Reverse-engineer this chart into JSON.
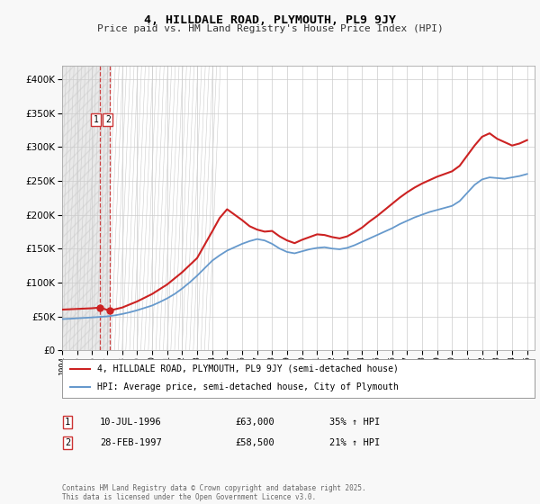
{
  "title": "4, HILLDALE ROAD, PLYMOUTH, PL9 9JY",
  "subtitle": "Price paid vs. HM Land Registry's House Price Index (HPI)",
  "legend_line1": "4, HILLDALE ROAD, PLYMOUTH, PL9 9JY (semi-detached house)",
  "legend_line2": "HPI: Average price, semi-detached house, City of Plymouth",
  "annotation1_num": "1",
  "annotation1_date": "10-JUL-1996",
  "annotation1_price": "£63,000",
  "annotation1_hpi": "35% ↑ HPI",
  "annotation2_num": "2",
  "annotation2_date": "28-FEB-1997",
  "annotation2_price": "£58,500",
  "annotation2_hpi": "21% ↑ HPI",
  "footer": "Contains HM Land Registry data © Crown copyright and database right 2025.\nThis data is licensed under the Open Government Licence v3.0.",
  "sale1_year": 1996.53,
  "sale1_price": 63000,
  "sale2_year": 1997.16,
  "sale2_price": 58500,
  "hpi_color": "#6699cc",
  "price_color": "#cc2222",
  "dashed_line_color": "#cc3333",
  "background_color": "#f8f8f8",
  "plot_bg_color": "#ffffff",
  "ylim": [
    0,
    420000
  ],
  "xlim_start": 1994.0,
  "xlim_end": 2025.5,
  "hpi_x": [
    1994.0,
    1994.5,
    1995.0,
    1995.5,
    1996.0,
    1996.5,
    1997.0,
    1997.5,
    1998.0,
    1998.5,
    1999.0,
    1999.5,
    2000.0,
    2000.5,
    2001.0,
    2001.5,
    2002.0,
    2002.5,
    2003.0,
    2003.5,
    2004.0,
    2004.5,
    2005.0,
    2005.5,
    2006.0,
    2006.5,
    2007.0,
    2007.5,
    2008.0,
    2008.5,
    2009.0,
    2009.5,
    2010.0,
    2010.5,
    2011.0,
    2011.5,
    2012.0,
    2012.5,
    2013.0,
    2013.5,
    2014.0,
    2014.5,
    2015.0,
    2015.5,
    2016.0,
    2016.5,
    2017.0,
    2017.5,
    2018.0,
    2018.5,
    2019.0,
    2019.5,
    2020.0,
    2020.5,
    2021.0,
    2021.5,
    2022.0,
    2022.5,
    2023.0,
    2023.5,
    2024.0,
    2024.5,
    2025.0
  ],
  "hpi_y": [
    46000,
    46500,
    47200,
    47800,
    48500,
    49200,
    50000,
    51500,
    53500,
    56000,
    59000,
    62500,
    66000,
    71000,
    76500,
    83000,
    91000,
    100000,
    110000,
    121000,
    132000,
    140000,
    147000,
    152000,
    157000,
    161000,
    164000,
    162000,
    157000,
    150000,
    145000,
    143000,
    146000,
    149000,
    151000,
    152000,
    150000,
    149000,
    151000,
    155000,
    160000,
    165000,
    170000,
    175000,
    180000,
    186000,
    191000,
    196000,
    200000,
    204000,
    207000,
    210000,
    213000,
    220000,
    232000,
    244000,
    252000,
    255000,
    254000,
    253000,
    255000,
    257000,
    260000
  ],
  "price_x": [
    1994.0,
    1995.0,
    1996.0,
    1996.53,
    1997.16,
    1998.0,
    1999.0,
    2000.0,
    2001.0,
    2002.0,
    2003.0,
    2004.0,
    2004.5,
    2005.0,
    2005.5,
    2006.0,
    2006.5,
    2007.0,
    2007.5,
    2008.0,
    2008.5,
    2009.0,
    2009.5,
    2010.0,
    2010.5,
    2011.0,
    2011.5,
    2012.0,
    2012.5,
    2013.0,
    2013.5,
    2014.0,
    2014.5,
    2015.0,
    2015.5,
    2016.0,
    2016.5,
    2017.0,
    2017.5,
    2018.0,
    2018.5,
    2019.0,
    2019.5,
    2020.0,
    2020.5,
    2021.0,
    2021.5,
    2022.0,
    2022.5,
    2023.0,
    2023.5,
    2024.0,
    2024.5,
    2025.0
  ],
  "price_y": [
    60000,
    61000,
    62000,
    63000,
    58500,
    63000,
    72000,
    83000,
    97000,
    115000,
    136000,
    175000,
    195000,
    208000,
    200000,
    192000,
    183000,
    178000,
    175000,
    176000,
    168000,
    162000,
    158000,
    163000,
    167000,
    171000,
    170000,
    167000,
    165000,
    168000,
    174000,
    181000,
    190000,
    198000,
    207000,
    216000,
    225000,
    233000,
    240000,
    246000,
    251000,
    256000,
    260000,
    264000,
    272000,
    287000,
    302000,
    315000,
    320000,
    312000,
    307000,
    302000,
    305000,
    310000
  ]
}
